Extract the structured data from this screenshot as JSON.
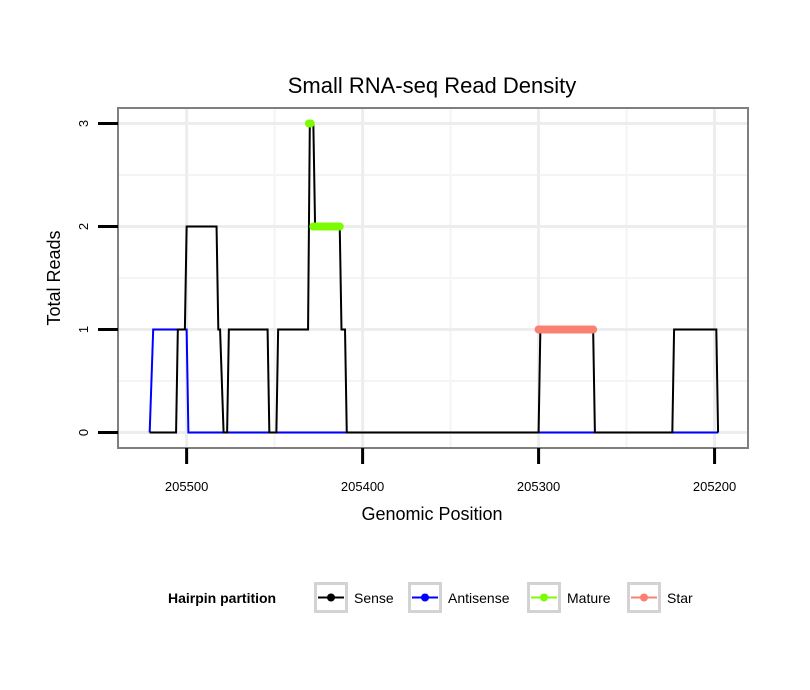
{
  "chart_data": {
    "type": "line",
    "title": "Small RNA-seq Read Density",
    "xlabel": "Genomic Position",
    "ylabel": "Total Reads",
    "x_reversed": true,
    "xlim": [
      205539,
      205181
    ],
    "ylim": [
      -0.15,
      3.15
    ],
    "x_ticks": [
      205500,
      205400,
      205300,
      205200
    ],
    "y_ticks": [
      0,
      1,
      2,
      3
    ],
    "grid": true,
    "legend": {
      "title": "Hairpin partition",
      "position": "bottom",
      "entries": [
        {
          "name": "Sense",
          "color": "#000000"
        },
        {
          "name": "Antisense",
          "color": "#0000ff"
        },
        {
          "name": "Mature",
          "color": "#7cfc00"
        },
        {
          "name": "Star",
          "color": "#fa8072"
        }
      ]
    },
    "series": [
      {
        "name": "Antisense",
        "color": "#0000ff",
        "kind": "line",
        "x": [
          205521,
          205519,
          205500,
          205499,
          205198
        ],
        "y": [
          0,
          1,
          1,
          0,
          0
        ]
      },
      {
        "name": "Sense",
        "color": "#000000",
        "kind": "line",
        "x": [
          205521,
          205506,
          205505,
          205501,
          205500,
          205483,
          205482,
          205481,
          205479,
          205477,
          205476,
          205454,
          205453,
          205449,
          205448,
          205431,
          205430,
          205428,
          205427,
          205413,
          205412,
          205410,
          205409,
          205300,
          205299,
          205269,
          205268,
          205224,
          205223,
          205199,
          205198
        ],
        "y": [
          0,
          0,
          1,
          1,
          2,
          2,
          1,
          1,
          0,
          0,
          1,
          1,
          0,
          0,
          1,
          1,
          3,
          3,
          2,
          2,
          1,
          1,
          0,
          0,
          1,
          1,
          0,
          0,
          1,
          1,
          0
        ]
      },
      {
        "name": "Mature",
        "color": "#7cfc00",
        "kind": "points",
        "x": [
          205430.5,
          205429.5,
          205428,
          205427,
          205426,
          205425,
          205424,
          205423,
          205422,
          205421,
          205420,
          205419,
          205418,
          205417,
          205416,
          205415,
          205414,
          205413
        ],
        "y": [
          3,
          3,
          2,
          2,
          2,
          2,
          2,
          2,
          2,
          2,
          2,
          2,
          2,
          2,
          2,
          2,
          2,
          2
        ]
      },
      {
        "name": "Star",
        "color": "#fa8072",
        "kind": "points",
        "x": [
          205300,
          205299,
          205298,
          205297,
          205296,
          205295,
          205294,
          205293,
          205292,
          205291,
          205290,
          205289,
          205288,
          205287,
          205286,
          205285,
          205284,
          205283,
          205282,
          205281,
          205280,
          205279,
          205278,
          205277,
          205276,
          205275,
          205274,
          205273,
          205272,
          205271,
          205270,
          205269
        ],
        "y": [
          1,
          1,
          1,
          1,
          1,
          1,
          1,
          1,
          1,
          1,
          1,
          1,
          1,
          1,
          1,
          1,
          1,
          1,
          1,
          1,
          1,
          1,
          1,
          1,
          1,
          1,
          1,
          1,
          1,
          1,
          1,
          1
        ]
      }
    ]
  }
}
